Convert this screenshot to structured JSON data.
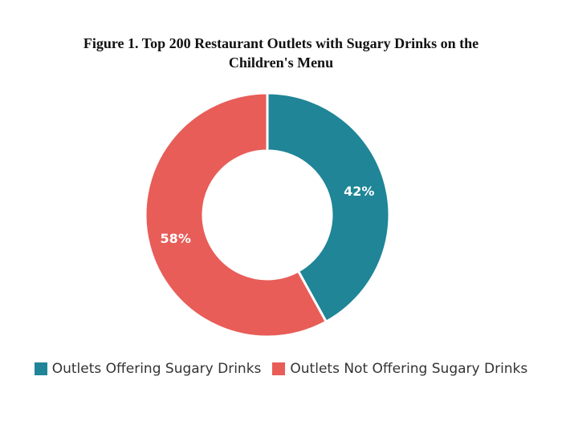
{
  "title_lines": [
    "Figure 1. Top 200 Restaurant Outlets with Sugary Drinks on the",
    "Children's Menu"
  ],
  "colors": {
    "offering": "#1f8597",
    "not_offering": "#e85d58"
  },
  "chart_data": {
    "type": "pie",
    "variant": "donut",
    "title": "Figure 1. Top 200 Restaurant Outlets with Sugary Drinks on the Children's Menu",
    "categories": [
      "Outlets Offering Sugary Drinks",
      "Outlets Not Offering Sugary Drinks"
    ],
    "values": [
      42,
      58
    ],
    "value_labels": [
      "42%",
      "58%"
    ],
    "start": "top",
    "direction": "clockwise",
    "legend_position": "bottom"
  },
  "legend": [
    {
      "label": "Outlets Offering Sugary Drinks",
      "color_key": "offering"
    },
    {
      "label": "Outlets Not Offering Sugary Drinks",
      "color_key": "not_offering"
    }
  ]
}
